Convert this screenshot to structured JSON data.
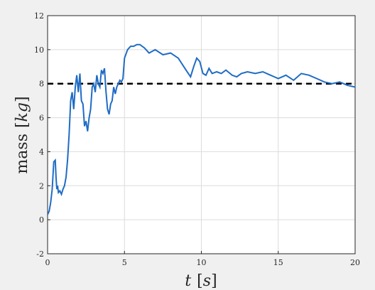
{
  "chart_data": {
    "type": "line",
    "title": "",
    "xlabel": {
      "var": "t",
      "unit": "s"
    },
    "ylabel": {
      "name": "mass",
      "unit": "kg"
    },
    "xlim": [
      0,
      20
    ],
    "ylim": [
      -2,
      12
    ],
    "xticks": [
      0,
      5,
      10,
      15,
      20
    ],
    "yticks": [
      -2,
      0,
      2,
      4,
      6,
      8,
      10,
      12
    ],
    "grid": true,
    "legend": "none",
    "colors": {
      "series": "#1f6cc4",
      "reference": "#000000",
      "axes_bg": "#ffffff",
      "figure_bg": "#f0f0f0",
      "grid": "#dcdcdc"
    },
    "reference_line": {
      "y": 8,
      "style": "dashed"
    },
    "series": [
      {
        "x": [
          0,
          0.1,
          0.2,
          0.3,
          0.4,
          0.5,
          0.55,
          0.6,
          0.65,
          0.7,
          0.8,
          0.9,
          1.0,
          1.1,
          1.2,
          1.3,
          1.4,
          1.5,
          1.6,
          1.7,
          1.8,
          1.9,
          2.0,
          2.1,
          2.2,
          2.3,
          2.4,
          2.5,
          2.6,
          2.7,
          2.8,
          2.9,
          3.0,
          3.1,
          3.2,
          3.3,
          3.4,
          3.5,
          3.6,
          3.7,
          3.8,
          3.9,
          4.0,
          4.1,
          4.2,
          4.3,
          4.4,
          4.5,
          4.6,
          4.7,
          4.8,
          4.9,
          5.0,
          5.2,
          5.4,
          5.6,
          5.8,
          6.0,
          6.3,
          6.6,
          7.0,
          7.5,
          8.0,
          8.5,
          9.0,
          9.3,
          9.5,
          9.7,
          9.9,
          10.1,
          10.3,
          10.5,
          10.7,
          11.0,
          11.3,
          11.6,
          12.0,
          12.3,
          12.6,
          13.0,
          13.5,
          14.0,
          14.5,
          15.0,
          15.5,
          16.0,
          16.5,
          17.0,
          17.5,
          18.0,
          18.5,
          19.0,
          19.5,
          20.0
        ],
        "values": [
          0.3,
          0.5,
          1.0,
          1.8,
          3.4,
          3.5,
          2.5,
          1.8,
          2.0,
          1.6,
          1.7,
          1.5,
          1.8,
          2.0,
          2.5,
          3.5,
          5.0,
          7.0,
          7.5,
          6.5,
          7.8,
          8.5,
          7.5,
          8.6,
          7.0,
          6.8,
          5.5,
          5.8,
          5.2,
          6.0,
          6.5,
          7.8,
          8.0,
          7.5,
          8.5,
          8.0,
          7.8,
          8.8,
          8.6,
          8.9,
          7.5,
          6.5,
          6.2,
          6.8,
          7.0,
          7.8,
          7.4,
          7.8,
          8.0,
          8.2,
          8.1,
          8.3,
          9.5,
          10.0,
          10.2,
          10.2,
          10.3,
          10.3,
          10.1,
          9.8,
          10.0,
          9.7,
          9.8,
          9.5,
          8.8,
          8.4,
          9.0,
          9.5,
          9.3,
          8.6,
          8.5,
          8.9,
          8.6,
          8.7,
          8.6,
          8.8,
          8.5,
          8.4,
          8.6,
          8.7,
          8.6,
          8.7,
          8.5,
          8.3,
          8.5,
          8.2,
          8.6,
          8.5,
          8.3,
          8.1,
          8.0,
          8.1,
          7.9,
          7.8
        ]
      }
    ]
  }
}
